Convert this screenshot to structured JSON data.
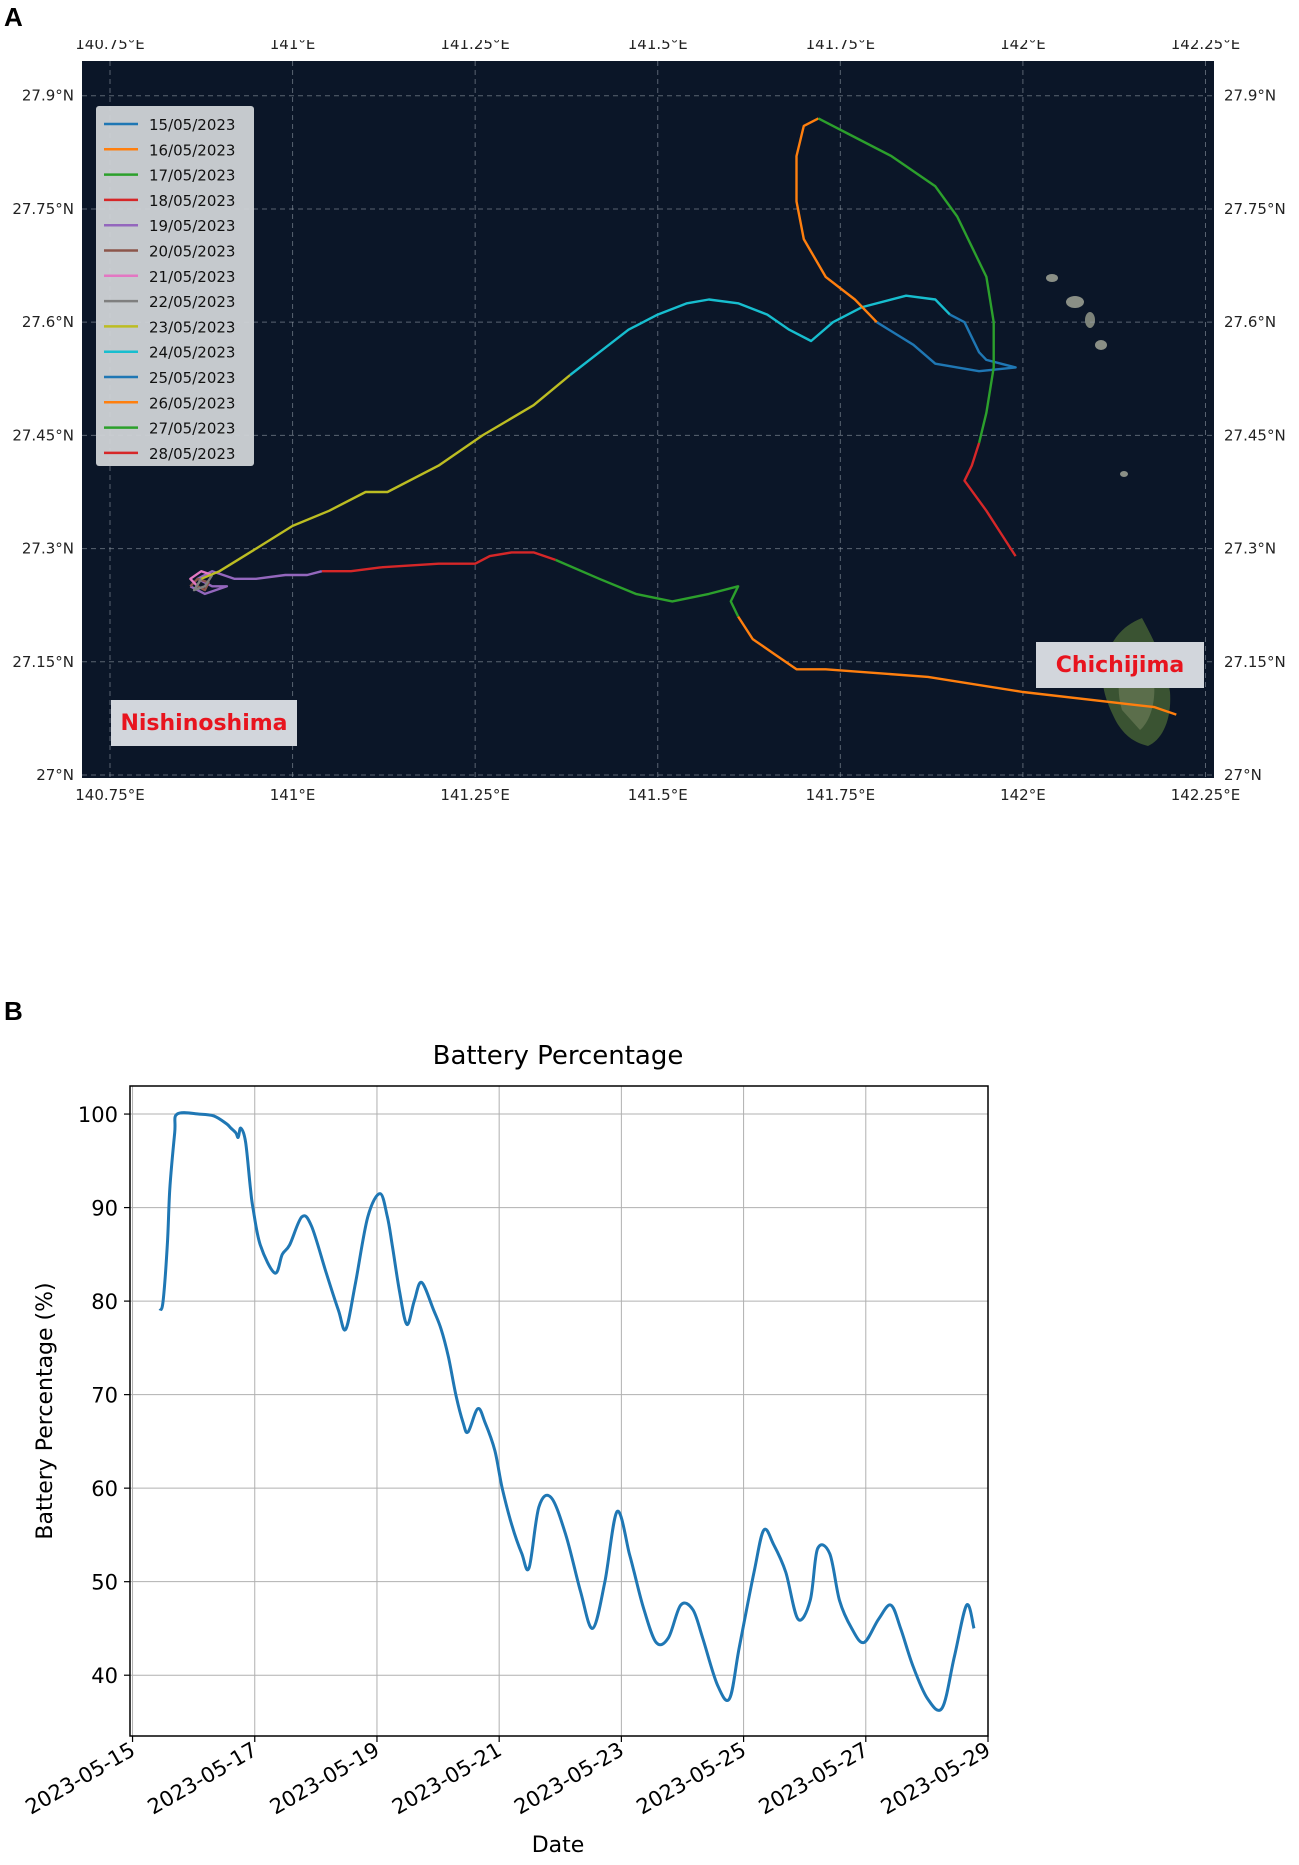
{
  "panels": {
    "a_label": "A",
    "b_label": "B"
  },
  "chart_data": [
    {
      "type": "line",
      "kind": "trajectory-map",
      "xlim": [
        140.75,
        142.3
      ],
      "ylim": [
        27.0,
        27.95
      ],
      "x_ticks": [
        {
          "value": 140.75,
          "label": "140.75°E"
        },
        {
          "value": 141.0,
          "label": "141°E"
        },
        {
          "value": 141.25,
          "label": "141.25°E"
        },
        {
          "value": 141.5,
          "label": "141.5°E"
        },
        {
          "value": 141.75,
          "label": "141.75°E"
        },
        {
          "value": 142.0,
          "label": "142°E"
        },
        {
          "value": 142.25,
          "label": "142.25°E"
        }
      ],
      "y_ticks": [
        {
          "value": 27.0,
          "label": "27°N"
        },
        {
          "value": 27.15,
          "label": "27.15°N"
        },
        {
          "value": 27.3,
          "label": "27.3°N"
        },
        {
          "value": 27.45,
          "label": "27.45°N"
        },
        {
          "value": 27.6,
          "label": "27.6°N"
        },
        {
          "value": 27.75,
          "label": "27.75°N"
        },
        {
          "value": 27.9,
          "label": "27.9°N"
        }
      ],
      "grid": true,
      "legend_position": "top-left",
      "background_color": "#0b1628",
      "series": [
        {
          "name": "15/05/2023",
          "color": "#1f77b4",
          "points": []
        },
        {
          "name": "16/05/2023",
          "color": "#ff7f0e",
          "points": [
            [
              142.21,
              27.08
            ],
            [
              142.18,
              27.09
            ],
            [
              142.0,
              27.11
            ],
            [
              141.87,
              27.13
            ],
            [
              141.73,
              27.14
            ],
            [
              141.69,
              27.14
            ],
            [
              141.66,
              27.16
            ],
            [
              141.63,
              27.18
            ],
            [
              141.61,
              27.21
            ]
          ]
        },
        {
          "name": "17/05/2023",
          "color": "#2ca02c",
          "points": [
            [
              141.61,
              27.21
            ],
            [
              141.6,
              27.23
            ],
            [
              141.61,
              27.25
            ],
            [
              141.57,
              27.24
            ],
            [
              141.52,
              27.23
            ],
            [
              141.47,
              27.24
            ],
            [
              141.42,
              27.26
            ],
            [
              141.36,
              27.285
            ]
          ]
        },
        {
          "name": "18/05/2023",
          "color": "#d62728",
          "points": [
            [
              141.36,
              27.285
            ],
            [
              141.33,
              27.295
            ],
            [
              141.3,
              27.295
            ],
            [
              141.27,
              27.29
            ],
            [
              141.25,
              27.28
            ],
            [
              141.2,
              27.28
            ],
            [
              141.12,
              27.275
            ],
            [
              141.08,
              27.27
            ],
            [
              141.04,
              27.27
            ]
          ]
        },
        {
          "name": "19/05/2023",
          "color": "#9467bd",
          "points": [
            [
              141.04,
              27.27
            ],
            [
              141.02,
              27.265
            ],
            [
              140.99,
              27.265
            ],
            [
              140.95,
              27.26
            ],
            [
              140.92,
              27.26
            ],
            [
              140.89,
              27.27
            ],
            [
              140.87,
              27.26
            ],
            [
              140.89,
              27.25
            ],
            [
              140.91,
              27.25
            ],
            [
              140.88,
              27.24
            ],
            [
              140.86,
              27.25
            ]
          ]
        },
        {
          "name": "20/05/2023",
          "color": "#8c564b",
          "points": [
            [
              140.86,
              27.25
            ],
            [
              140.87,
              27.26
            ],
            [
              140.885,
              27.255
            ],
            [
              140.88,
              27.245
            ],
            [
              140.87,
              27.25
            ]
          ]
        },
        {
          "name": "21/05/2023",
          "color": "#e377c2",
          "points": [
            [
              140.87,
              27.25
            ],
            [
              140.86,
              27.26
            ],
            [
              140.875,
              27.27
            ],
            [
              140.89,
              27.265
            ]
          ]
        },
        {
          "name": "22/05/2023",
          "color": "#7f7f7f",
          "points": [
            [
              140.89,
              27.265
            ],
            [
              140.88,
              27.25
            ],
            [
              140.865,
              27.245
            ],
            [
              140.875,
              27.26
            ]
          ]
        },
        {
          "name": "23/05/2023",
          "color": "#bcbd22",
          "points": [
            [
              140.875,
              27.26
            ],
            [
              140.9,
              27.27
            ],
            [
              140.95,
              27.3
            ],
            [
              141.0,
              27.33
            ],
            [
              141.05,
              27.35
            ],
            [
              141.1,
              27.375
            ],
            [
              141.13,
              27.375
            ],
            [
              141.2,
              27.41
            ],
            [
              141.26,
              27.45
            ],
            [
              141.33,
              27.49
            ],
            [
              141.38,
              27.53
            ]
          ]
        },
        {
          "name": "24/05/2023",
          "color": "#17becf",
          "points": [
            [
              141.38,
              27.53
            ],
            [
              141.42,
              27.56
            ],
            [
              141.46,
              27.59
            ],
            [
              141.5,
              27.61
            ],
            [
              141.54,
              27.625
            ],
            [
              141.57,
              27.63
            ],
            [
              141.61,
              27.625
            ],
            [
              141.65,
              27.61
            ],
            [
              141.68,
              27.59
            ],
            [
              141.71,
              27.575
            ],
            [
              141.74,
              27.6
            ],
            [
              141.78,
              27.62
            ],
            [
              141.84,
              27.635
            ],
            [
              141.88,
              27.63
            ],
            [
              141.9,
              27.61
            ]
          ]
        },
        {
          "name": "25/05/2023",
          "color": "#1f77b4",
          "points": [
            [
              141.9,
              27.61
            ],
            [
              141.92,
              27.6
            ],
            [
              141.93,
              27.58
            ],
            [
              141.94,
              27.56
            ],
            [
              141.95,
              27.55
            ],
            [
              141.97,
              27.545
            ],
            [
              141.99,
              27.54
            ],
            [
              141.94,
              27.535
            ],
            [
              141.88,
              27.545
            ],
            [
              141.85,
              27.57
            ],
            [
              141.8,
              27.6
            ]
          ]
        },
        {
          "name": "26/05/2023",
          "color": "#ff7f0e",
          "points": [
            [
              141.8,
              27.6
            ],
            [
              141.77,
              27.63
            ],
            [
              141.73,
              27.66
            ],
            [
              141.7,
              27.71
            ],
            [
              141.69,
              27.76
            ],
            [
              141.69,
              27.82
            ],
            [
              141.7,
              27.86
            ],
            [
              141.72,
              27.87
            ]
          ]
        },
        {
          "name": "27/05/2023",
          "color": "#2ca02c",
          "points": [
            [
              141.72,
              27.87
            ],
            [
              141.76,
              27.85
            ],
            [
              141.82,
              27.82
            ],
            [
              141.88,
              27.78
            ],
            [
              141.91,
              27.74
            ],
            [
              141.93,
              27.7
            ],
            [
              141.95,
              27.66
            ],
            [
              141.96,
              27.6
            ],
            [
              141.96,
              27.54
            ],
            [
              141.95,
              27.48
            ],
            [
              141.94,
              27.44
            ]
          ]
        },
        {
          "name": "28/05/2023",
          "color": "#d62728",
          "points": [
            [
              141.94,
              27.44
            ],
            [
              141.93,
              27.41
            ],
            [
              141.92,
              27.39
            ],
            [
              141.95,
              27.35
            ],
            [
              141.97,
              27.32
            ],
            [
              141.99,
              27.29
            ]
          ]
        }
      ],
      "annotations": [
        {
          "text": "Nishinoshima",
          "text_color": "#e8141e",
          "box_color": "#d2d6dc"
        },
        {
          "text": "Chichijima",
          "text_color": "#e8141e",
          "box_color": "#d2d6dc"
        }
      ]
    },
    {
      "type": "line",
      "title": "Battery Percentage",
      "xlabel": "Date",
      "ylabel": "Battery Percentage (%)",
      "xlim": [
        "2023-05-14T23:00",
        "2023-05-29T00:00"
      ],
      "ylim": [
        33.5,
        103
      ],
      "x_tick_labels": [
        "2023-05-15",
        "2023-05-17",
        "2023-05-19",
        "2023-05-21",
        "2023-05-23",
        "2023-05-25",
        "2023-05-27",
        "2023-05-29"
      ],
      "y_ticks": [
        40,
        50,
        60,
        70,
        80,
        90,
        100
      ],
      "grid": true,
      "series": [
        {
          "name": "",
          "color": "#1f77b4",
          "x": [
            "2023-05-15T10:48",
            "2023-05-15T12:00",
            "2023-05-15T13:40",
            "2023-05-15T14:38",
            "2023-05-15T16:34",
            "2023-05-15T17:31",
            "2023-05-16T02:10",
            "2023-05-16T07:55",
            "2023-05-16T12:43",
            "2023-05-16T14:38",
            "2023-05-16T16:34",
            "2023-05-16T17:31",
            "2023-05-16T18:29",
            "2023-05-16T20:24",
            "2023-05-16T22:19",
            "2023-05-16T23:17",
            "2023-05-17T02:10",
            "2023-05-17T07:55",
            "2023-05-17T10:48",
            "2023-05-17T13:41",
            "2023-05-17T18:29",
            "2023-05-17T22:19",
            "2023-05-18T04:05",
            "2023-05-18T08:53",
            "2023-05-18T11:46",
            "2023-05-18T15:36",
            "2023-05-18T20:24",
            "2023-05-19T01:12",
            "2023-05-19T04:05",
            "2023-05-19T06:00",
            "2023-05-19T08:53",
            "2023-05-19T11:46",
            "2023-05-19T14:38",
            "2023-05-19T17:31",
            "2023-05-19T22:19",
            "2023-05-20T01:12",
            "2023-05-20T04:05",
            "2023-05-20T06:58",
            "2023-05-20T09:50",
            "2023-05-20T11:46",
            "2023-05-20T15:36",
            "2023-05-20T18:29",
            "2023-05-20T22:19",
            "2023-05-21T01:12",
            "2023-05-21T05:02",
            "2023-05-21T08:53",
            "2023-05-21T11:46",
            "2023-05-21T15:36",
            "2023-05-21T20:24",
            "2023-05-22T02:10",
            "2023-05-22T07:55",
            "2023-05-22T12:43",
            "2023-05-22T17:31",
            "2023-05-22T22:19",
            "2023-05-23T03:07",
            "2023-05-23T05:02",
            "2023-05-23T08:53",
            "2023-05-23T13:41",
            "2023-05-23T18:29",
            "2023-05-23T23:17",
            "2023-05-24T04:05",
            "2023-05-24T07:55",
            "2023-05-24T13:41",
            "2023-05-24T18:29",
            "2023-05-24T22:19",
            "2023-05-25T04:05",
            "2023-05-25T07:55",
            "2023-05-25T11:46",
            "2023-05-25T16:34",
            "2023-05-25T21:22",
            "2023-05-26T02:10",
            "2023-05-26T05:02",
            "2023-05-26T09:50",
            "2023-05-26T13:41",
            "2023-05-26T18:29",
            "2023-05-26T23:17",
            "2023-05-27T05:02",
            "2023-05-27T09:50",
            "2023-05-27T13:41",
            "2023-05-27T18:29",
            "2023-05-28T00:14",
            "2023-05-28T06:00",
            "2023-05-28T10:48",
            "2023-05-28T15:36",
            "2023-05-28T18:29"
          ],
          "values": [
            79.0,
            80.0,
            86.0,
            92.0,
            98.0,
            100.0,
            100.0,
            99.8,
            99.0,
            98.5,
            98.0,
            97.5,
            98.5,
            97.0,
            92.0,
            90.0,
            86.0,
            83.0,
            85.0,
            86.0,
            89.0,
            88.0,
            83.0,
            79.0,
            77.0,
            82.0,
            89.0,
            91.5,
            89.0,
            86.0,
            81.0,
            77.5,
            80.0,
            82.0,
            79.0,
            77.0,
            74.0,
            70.0,
            67.0,
            66.0,
            68.5,
            67.0,
            64.0,
            60.0,
            56.0,
            53.0,
            51.5,
            58.0,
            59.0,
            55.0,
            49.0,
            45.0,
            50.0,
            57.5,
            53.0,
            51.0,
            47.0,
            43.5,
            44.0,
            47.5,
            47.0,
            44.0,
            39.0,
            37.5,
            43.0,
            51.0,
            55.5,
            54.0,
            51.0,
            46.0,
            48.0,
            53.5,
            53.0,
            48.0,
            45.0,
            43.5,
            46.0,
            47.5,
            45.0,
            41.0,
            37.5,
            36.5,
            42.0,
            47.5,
            45.0
          ]
        }
      ]
    }
  ]
}
